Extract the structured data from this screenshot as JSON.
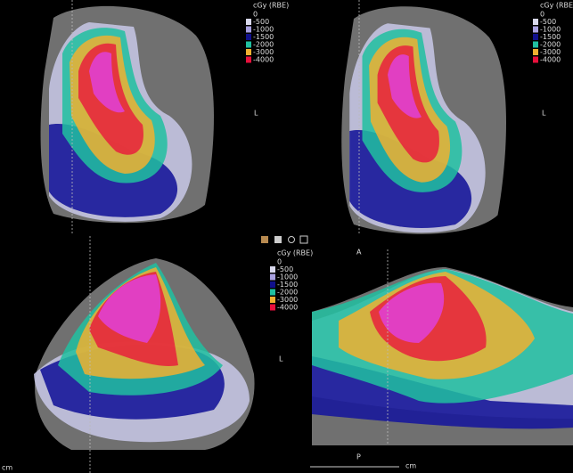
{
  "panels": [
    {
      "legend": {
        "title": "cGy (RBE)",
        "levels": [
          {
            "label": "0"
          },
          {
            "label": "-500",
            "color": "#d8d8ec"
          },
          {
            "label": "-1000",
            "color": "#a8a0e0"
          },
          {
            "label": "-1500",
            "color": "#10108c"
          },
          {
            "label": "-2000",
            "color": "#20c0a0"
          },
          {
            "label": "-3000",
            "color": "#f0b030"
          },
          {
            "label": "-4000",
            "color": "#e8103c"
          }
        ]
      },
      "labels": [
        "L"
      ]
    },
    {
      "legend": {
        "title": "cGy (RBE)",
        "levels": [
          {
            "label": "0"
          },
          {
            "label": "-500",
            "color": "#d8d8ec"
          },
          {
            "label": "-1000",
            "color": "#a8a0e0"
          },
          {
            "label": "-1500",
            "color": "#10108c"
          },
          {
            "label": "-2000",
            "color": "#20c0a0"
          },
          {
            "label": "-3000",
            "color": "#f0b030"
          },
          {
            "label": "-4000",
            "color": "#e8103c"
          }
        ]
      },
      "labels": [
        "L"
      ]
    },
    {
      "legend": {
        "title": "cGy (RBE)",
        "levels": [
          {
            "label": "0"
          },
          {
            "label": "-500",
            "color": "#d8d8ec"
          },
          {
            "label": "-1000",
            "color": "#a8a0e0"
          },
          {
            "label": "-1500",
            "color": "#10108c"
          },
          {
            "label": "-2000",
            "color": "#20c0a0"
          },
          {
            "label": "-3000",
            "color": "#f0b030"
          },
          {
            "label": "-4000",
            "color": "#e8103c"
          }
        ]
      },
      "labels": [
        "L",
        "cm"
      ]
    },
    {
      "labels": [
        "A",
        "P",
        "cm"
      ]
    }
  ]
}
